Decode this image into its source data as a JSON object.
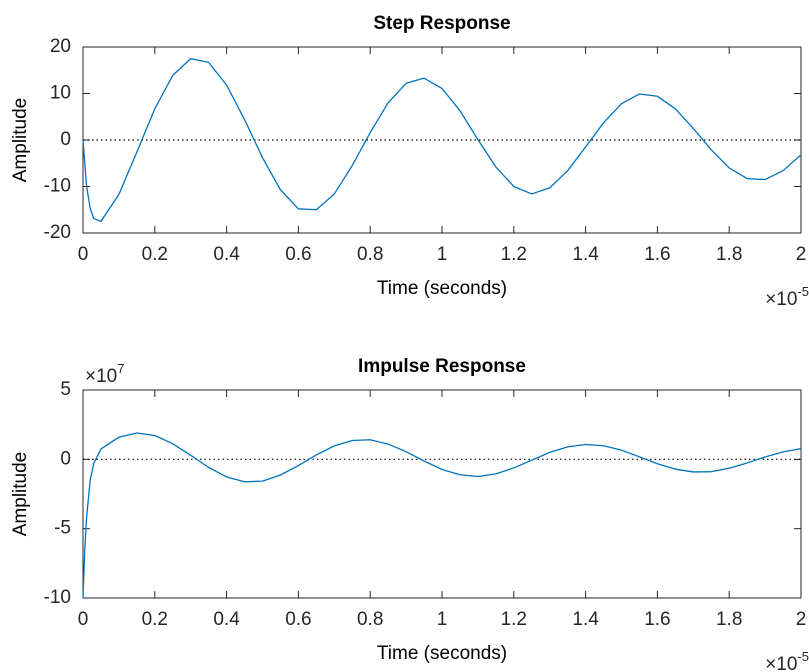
{
  "chart_data": [
    {
      "type": "line",
      "title": "Step Response",
      "xlabel": "Time (seconds)",
      "ylabel": "Amplitude",
      "x_multiplier": {
        "base": "×10",
        "exponent": "-5"
      },
      "x": [
        0,
        0.01,
        0.02,
        0.03,
        0.05,
        0.1,
        0.15,
        0.2,
        0.25,
        0.3,
        0.35,
        0.4,
        0.45,
        0.5,
        0.55,
        0.6,
        0.65,
        0.7,
        0.75,
        0.8,
        0.85,
        0.9,
        0.95,
        1.0,
        1.05,
        1.1,
        1.15,
        1.2,
        1.25,
        1.3,
        1.35,
        1.4,
        1.45,
        1.5,
        1.55,
        1.6,
        1.65,
        1.7,
        1.75,
        1.8,
        1.85,
        1.9,
        1.95,
        2.0
      ],
      "series": [
        {
          "color": "#0072bd",
          "values": [
            0,
            -9.9,
            -14.7,
            -16.9,
            -17.5,
            -11.7,
            -2.6,
            6.7,
            13.9,
            17.5,
            16.7,
            11.8,
            4.4,
            -3.8,
            -10.7,
            -14.8,
            -15.0,
            -11.6,
            -5.5,
            1.6,
            8.0,
            12.2,
            13.3,
            11.1,
            6.3,
            0.1,
            -5.8,
            -10.0,
            -11.6,
            -10.3,
            -6.6,
            -1.5,
            3.7,
            7.8,
            9.9,
            9.4,
            6.7,
            2.5,
            -2.1,
            -6.0,
            -8.3,
            -8.5,
            -6.6,
            -3.2
          ]
        }
      ],
      "xlim": [
        0,
        2
      ],
      "xticks": [
        0,
        0.2,
        0.4,
        0.6,
        0.8,
        1,
        1.2,
        1.4,
        1.6,
        1.8,
        2
      ],
      "ylim": [
        -20,
        20
      ],
      "yticks": [
        -20,
        -10,
        0,
        10,
        20
      ],
      "hline": 0
    },
    {
      "type": "line",
      "title": "Impulse Response",
      "xlabel": "Time (seconds)",
      "ylabel": "Amplitude",
      "x_multiplier": {
        "base": "×10",
        "exponent": "-5"
      },
      "y_multiplier": {
        "base": "×10",
        "exponent": "7"
      },
      "x": [
        0,
        0.005,
        0.01,
        0.02,
        0.03,
        0.05,
        0.1,
        0.15,
        0.2,
        0.25,
        0.3,
        0.35,
        0.4,
        0.45,
        0.5,
        0.55,
        0.6,
        0.65,
        0.7,
        0.75,
        0.8,
        0.85,
        0.9,
        0.95,
        1.0,
        1.05,
        1.1,
        1.15,
        1.2,
        1.25,
        1.3,
        1.35,
        1.4,
        1.45,
        1.5,
        1.55,
        1.6,
        1.65,
        1.7,
        1.75,
        1.8,
        1.85,
        1.9,
        1.95,
        2.0
      ],
      "series": [
        {
          "color": "#0072bd",
          "values": [
            -10,
            -6.5,
            -4.2,
            -1.5,
            -0.3,
            0.75,
            1.6,
            1.9,
            1.72,
            1.13,
            0.29,
            -0.58,
            -1.27,
            -1.62,
            -1.57,
            -1.13,
            -0.45,
            0.32,
            0.97,
            1.36,
            1.41,
            1.1,
            0.55,
            -0.12,
            -0.73,
            -1.11,
            -1.24,
            -1.05,
            -0.62,
            -0.06,
            0.5,
            0.9,
            1.07,
            0.98,
            0.66,
            0.18,
            -0.32,
            -0.71,
            -0.91,
            -0.89,
            -0.64,
            -0.26,
            0.17,
            0.54,
            0.77
          ]
        }
      ],
      "xlim": [
        0,
        2
      ],
      "xticks": [
        0,
        0.2,
        0.4,
        0.6,
        0.8,
        1,
        1.2,
        1.4,
        1.6,
        1.8,
        2
      ],
      "ylim": [
        -10,
        5
      ],
      "yticks": [
        -10,
        -5,
        0,
        5
      ],
      "hline": 0
    }
  ]
}
